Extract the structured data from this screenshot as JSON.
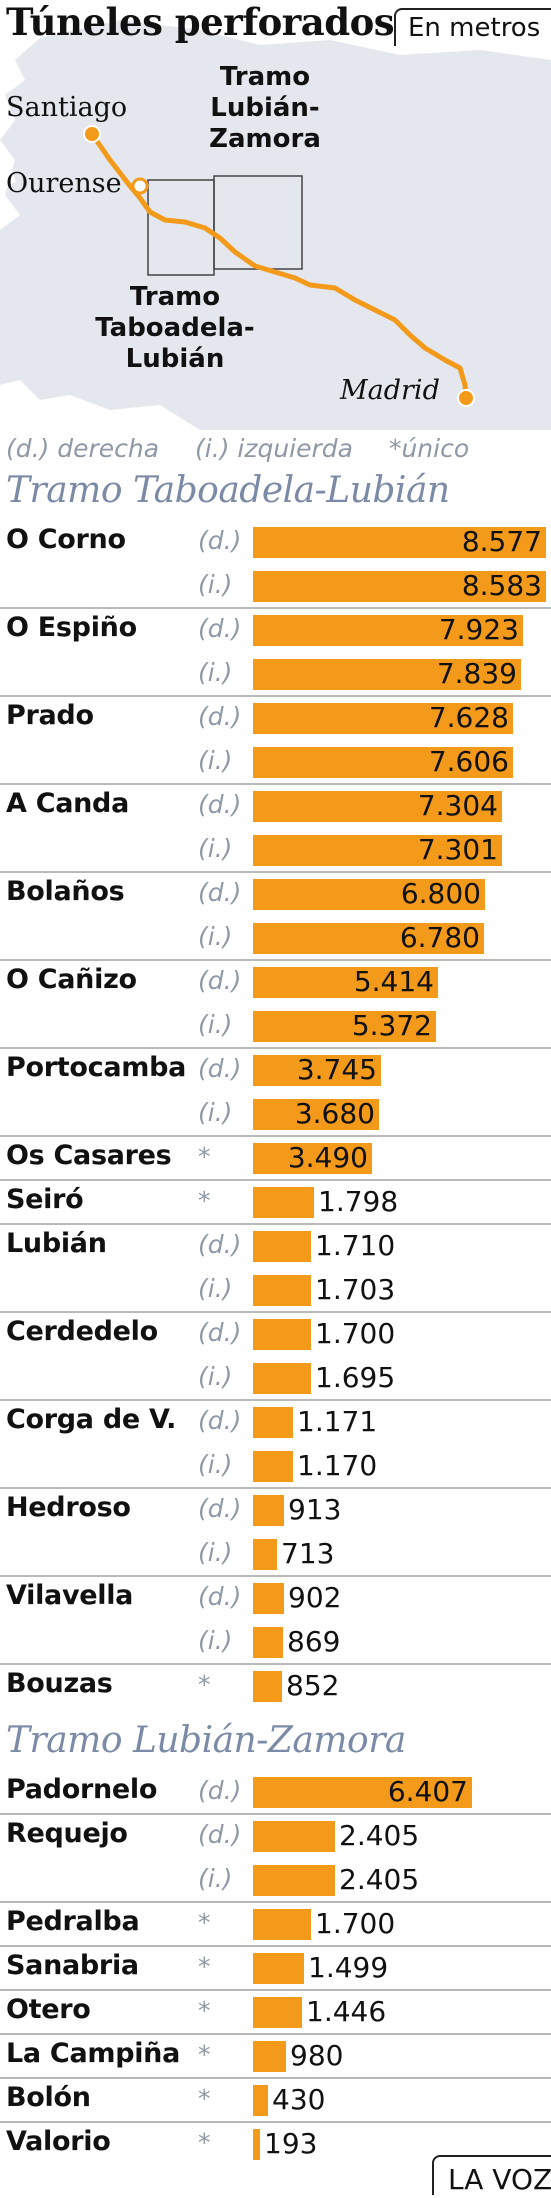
{
  "title": "Túneles perforados",
  "unit": "En metros",
  "map": {
    "cities": [
      "Santiago",
      "Ourense",
      "Madrid"
    ],
    "tramos": [
      {
        "lines": [
          "Tramo",
          "Lubián-",
          "Zamora"
        ]
      },
      {
        "lines": [
          "Tramo",
          "Taboadela-",
          "Lubián"
        ]
      }
    ]
  },
  "legend": {
    "right": "(d.) derecha",
    "left": "(i.) izquierda",
    "single": "*único"
  },
  "source": "LA VOZ",
  "colors": {
    "bar": "#f39a1b",
    "section": "#7b8aa6",
    "legend": "#8e98a6",
    "map_land": "#e4e7ed"
  },
  "chart_data": {
    "type": "bar",
    "orientation": "horizontal",
    "title": "Túneles perforados",
    "unit": "En metros",
    "sections": [
      {
        "name": "Tramo Taboadela-Lubián",
        "tunnels": [
          {
            "name": "O Corno",
            "bores": [
              {
                "side": "(d.)",
                "value": 8577,
                "label": "8.577"
              },
              {
                "side": "(i.)",
                "value": 8583,
                "label": "8.583"
              }
            ]
          },
          {
            "name": "O Espiño",
            "bores": [
              {
                "side": "(d.)",
                "value": 7923,
                "label": "7.923"
              },
              {
                "side": "(i.)",
                "value": 7839,
                "label": "7.839"
              }
            ]
          },
          {
            "name": "Prado",
            "bores": [
              {
                "side": "(d.)",
                "value": 7628,
                "label": "7.628"
              },
              {
                "side": "(i.)",
                "value": 7606,
                "label": "7.606"
              }
            ]
          },
          {
            "name": "A Canda",
            "bores": [
              {
                "side": "(d.)",
                "value": 7304,
                "label": "7.304"
              },
              {
                "side": "(i.)",
                "value": 7301,
                "label": "7.301"
              }
            ]
          },
          {
            "name": "Bolaños",
            "bores": [
              {
                "side": "(d.)",
                "value": 6800,
                "label": "6.800"
              },
              {
                "side": "(i.)",
                "value": 6780,
                "label": "6.780"
              }
            ]
          },
          {
            "name": "O Cañizo",
            "bores": [
              {
                "side": "(d.)",
                "value": 5414,
                "label": "5.414"
              },
              {
                "side": "(i.)",
                "value": 5372,
                "label": "5.372"
              }
            ]
          },
          {
            "name": "Portocamba",
            "bores": [
              {
                "side": "(d.)",
                "value": 3745,
                "label": "3.745"
              },
              {
                "side": "(i.)",
                "value": 3680,
                "label": "3.680"
              }
            ]
          },
          {
            "name": "Os Casares",
            "bores": [
              {
                "side": "*",
                "value": 3490,
                "label": "3.490"
              }
            ]
          },
          {
            "name": "Seiró",
            "bores": [
              {
                "side": "*",
                "value": 1798,
                "label": "1.798"
              }
            ]
          },
          {
            "name": "Lubián",
            "bores": [
              {
                "side": "(d.)",
                "value": 1710,
                "label": "1.710"
              },
              {
                "side": "(i.)",
                "value": 1703,
                "label": "1.703"
              }
            ]
          },
          {
            "name": "Cerdedelo",
            "bores": [
              {
                "side": "(d.)",
                "value": 1700,
                "label": "1.700"
              },
              {
                "side": "(i.)",
                "value": 1695,
                "label": "1.695"
              }
            ]
          },
          {
            "name": "Corga de V.",
            "bores": [
              {
                "side": "(d.)",
                "value": 1171,
                "label": "1.171"
              },
              {
                "side": "(i.)",
                "value": 1170,
                "label": "1.170"
              }
            ]
          },
          {
            "name": "Hedroso",
            "bores": [
              {
                "side": "(d.)",
                "value": 913,
                "label": "913"
              },
              {
                "side": "(i.)",
                "value": 713,
                "label": "713"
              }
            ]
          },
          {
            "name": "Vilavella",
            "bores": [
              {
                "side": "(d.)",
                "value": 902,
                "label": "902"
              },
              {
                "side": "(i.)",
                "value": 869,
                "label": "869"
              }
            ]
          },
          {
            "name": "Bouzas",
            "bores": [
              {
                "side": "*",
                "value": 852,
                "label": "852"
              }
            ]
          }
        ]
      },
      {
        "name": "Tramo Lubián-Zamora",
        "tunnels": [
          {
            "name": "Padornelo",
            "bores": [
              {
                "side": "(d.)",
                "value": 6407,
                "label": "6.407"
              }
            ]
          },
          {
            "name": "Requejo",
            "bores": [
              {
                "side": "(d.)",
                "value": 2405,
                "label": "2.405"
              },
              {
                "side": "(i.)",
                "value": 2405,
                "label": "2.405"
              }
            ]
          },
          {
            "name": "Pedralba",
            "bores": [
              {
                "side": "*",
                "value": 1700,
                "label": "1.700"
              }
            ]
          },
          {
            "name": "Sanabria",
            "bores": [
              {
                "side": "*",
                "value": 1499,
                "label": "1.499"
              }
            ]
          },
          {
            "name": "Otero",
            "bores": [
              {
                "side": "*",
                "value": 1446,
                "label": "1.446"
              }
            ]
          },
          {
            "name": "La Campiña",
            "bores": [
              {
                "side": "*",
                "value": 980,
                "label": "980"
              }
            ]
          },
          {
            "name": "Bolón",
            "bores": [
              {
                "side": "*",
                "value": 430,
                "label": "430"
              }
            ]
          },
          {
            "name": "Valorio",
            "bores": [
              {
                "side": "*",
                "value": 193,
                "label": "193"
              }
            ]
          }
        ]
      }
    ]
  }
}
